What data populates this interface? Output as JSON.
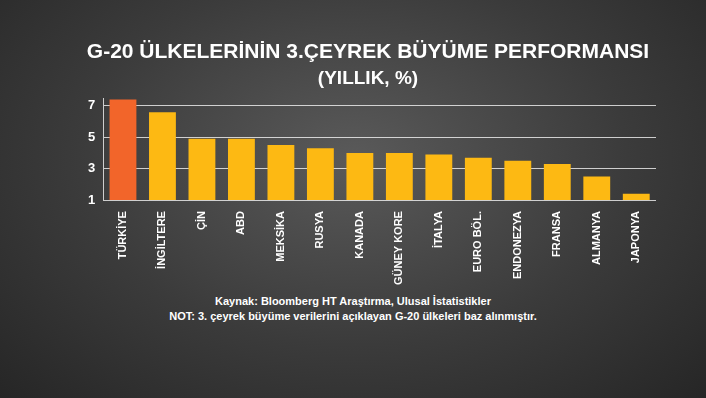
{
  "chart_data": {
    "type": "bar",
    "title": "G-20 ÜLKELERİNİN 3.ÇEYREK BÜYÜME PERFORMANSI",
    "subtitle": "(YILLIK, %)",
    "categories": [
      "TÜRKİYE",
      "İNGİLTERE",
      "ÇİN",
      "ABD",
      "MEKSİKA",
      "RUSYA",
      "KANADA",
      "GÜNEY KORE",
      "İTALYA",
      "EURO BÖL.",
      "ENDONEZYA",
      "FRANSA",
      "ALMANYA",
      "JAPONYA"
    ],
    "values": [
      7.4,
      6.6,
      4.9,
      4.9,
      4.5,
      4.3,
      4.0,
      4.0,
      3.9,
      3.7,
      3.5,
      3.3,
      2.5,
      1.4
    ],
    "colors": [
      "#f2652a",
      "#fdb913",
      "#fdb913",
      "#fdb913",
      "#fdb913",
      "#fdb913",
      "#fdb913",
      "#fdb913",
      "#fdb913",
      "#fdb913",
      "#fdb913",
      "#fdb913",
      "#fdb913",
      "#fdb913"
    ],
    "ylim": [
      1,
      7.5
    ],
    "yticks": [
      1,
      3,
      5,
      7
    ],
    "grid": true,
    "source": "Kaynak: Bloomberg HT Araştırma, Ulusal İstatistikler",
    "note": "NOT: 3. çeyrek büyüme verilerini açıklayan G-20 ülkeleri baz alınmıştır."
  }
}
